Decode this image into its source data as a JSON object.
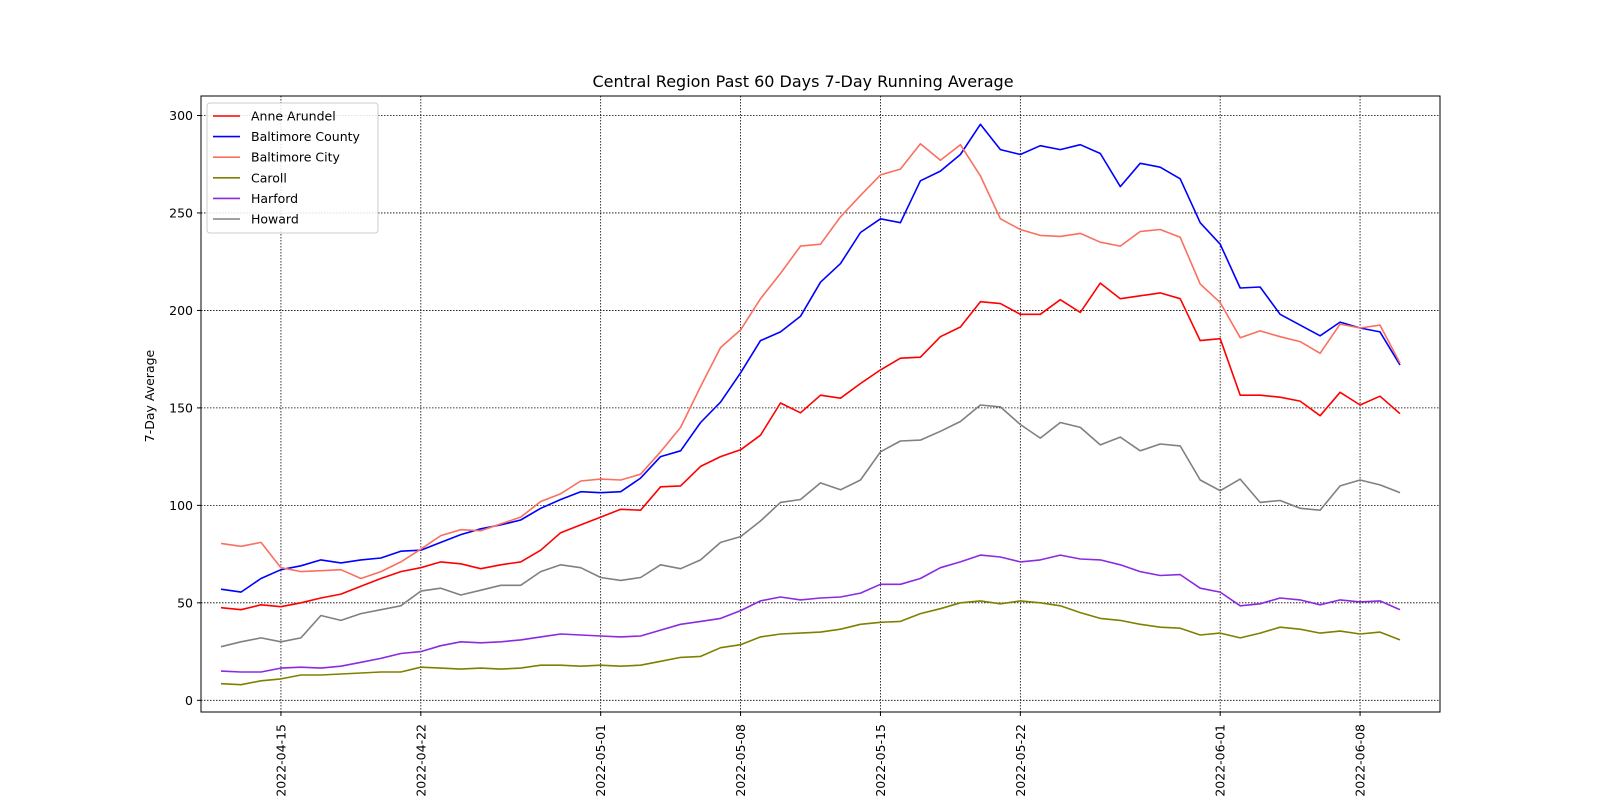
{
  "chart_data": {
    "type": "line",
    "title": "Central Region Past 60 Days 7-Day Running Average",
    "xlabel": "",
    "ylabel": "7-Day Average",
    "x_start": "2022-04-12",
    "x_end": "2022-06-10",
    "xlim": [
      "2022-04-11",
      "2022-06-12"
    ],
    "ylim": [
      -6,
      310
    ],
    "x_ticks": [
      "2022-04-15",
      "2022-04-22",
      "2022-05-01",
      "2022-05-08",
      "2022-05-15",
      "2022-05-22",
      "2022-06-01",
      "2022-06-08"
    ],
    "y_ticks": [
      0,
      50,
      100,
      150,
      200,
      250,
      300
    ],
    "grid": true,
    "legend_position": "top-left",
    "series": [
      {
        "name": "Anne Arundel",
        "color": "#ff0000",
        "values": [
          47.5,
          46.5,
          49,
          48,
          50,
          52.5,
          54.5,
          58.5,
          62.5,
          66,
          68,
          71,
          70,
          67.5,
          69.5,
          71,
          77,
          86,
          90,
          94,
          98,
          97.5,
          109.5,
          110,
          120,
          125,
          128.5,
          136,
          152.5,
          147.5,
          156.5,
          155,
          162.5,
          169.5,
          175.5,
          176,
          186.5,
          191.5,
          204.5,
          203.5,
          198,
          198,
          205.5,
          199,
          214,
          206,
          207.5,
          209,
          206,
          184.5,
          185.5,
          156.5,
          156.5,
          155.5,
          153.5,
          146,
          158,
          151.5,
          156,
          147
        ]
      },
      {
        "name": "Baltimore County",
        "color": "#0000ff",
        "values": [
          57,
          55.5,
          62.5,
          67,
          69,
          72,
          70.5,
          72,
          73,
          76.5,
          77,
          81,
          85,
          88,
          90,
          92.5,
          98.5,
          103,
          107,
          106.5,
          107,
          114,
          125,
          128,
          142.5,
          153,
          168,
          184.5,
          189,
          197,
          214.5,
          224,
          240,
          247,
          245,
          266.5,
          271.5,
          280,
          295.5,
          282.5,
          280,
          284.5,
          282.5,
          285,
          280.5,
          263.5,
          275.5,
          273.5,
          267.5,
          245,
          234,
          211.5,
          212,
          198,
          192.5,
          187,
          194,
          191,
          189,
          172
        ]
      },
      {
        "name": "Baltimore City",
        "color": "#fa7060",
        "values": [
          80.5,
          79,
          81,
          68,
          66,
          66.5,
          67,
          62.5,
          66,
          71,
          77.5,
          84.5,
          87.5,
          87,
          90.5,
          94,
          102,
          106,
          112.5,
          113.5,
          113,
          116,
          127.5,
          140,
          161,
          181,
          190,
          206,
          219,
          233,
          234,
          248,
          259,
          269.5,
          272.5,
          285.5,
          277,
          285,
          269,
          247,
          241.5,
          238.5,
          238,
          239.5,
          235,
          233,
          240.5,
          241.5,
          237.5,
          213.5,
          204,
          186,
          189.5,
          186.5,
          184,
          178,
          193,
          191,
          192.5,
          173
        ]
      },
      {
        "name": "Caroll",
        "color": "#808000",
        "values": [
          8.5,
          8,
          10,
          11,
          13,
          13,
          13.5,
          14,
          14.5,
          14.5,
          17,
          16.5,
          16,
          16.5,
          16,
          16.5,
          18,
          18,
          17.5,
          18,
          17.5,
          18,
          20,
          22,
          22.5,
          27,
          28.5,
          32.5,
          34,
          34.5,
          35,
          36.5,
          39,
          40,
          40.5,
          44.5,
          47,
          50,
          51,
          49.5,
          51,
          50,
          48.5,
          45,
          42,
          41,
          39,
          37.5,
          37,
          33.5,
          34.5,
          32,
          34.5,
          37.5,
          36.5,
          34.5,
          35.5,
          34,
          35,
          31
        ]
      },
      {
        "name": "Harford",
        "color": "#8a2be2",
        "values": [
          15,
          14.5,
          14.5,
          16.5,
          17,
          16.5,
          17.5,
          19.5,
          21.5,
          24,
          25,
          28,
          30,
          29.5,
          30,
          31,
          32.5,
          34,
          33.5,
          33,
          32.5,
          33,
          36,
          39,
          40.5,
          42,
          46,
          51,
          53,
          51.5,
          52.5,
          53,
          55,
          59.5,
          59.5,
          62.5,
          68,
          71,
          74.5,
          73.5,
          71,
          72,
          74.5,
          72.5,
          72,
          69.5,
          66,
          64,
          64.5,
          57.5,
          55.5,
          48.5,
          49.5,
          52.5,
          51.5,
          49,
          51.5,
          50.5,
          51,
          46.5
        ]
      },
      {
        "name": "Howard",
        "color": "#808080",
        "values": [
          27.5,
          30,
          32,
          30,
          32,
          43.5,
          41,
          44.5,
          46.5,
          48.5,
          56,
          57.5,
          54,
          56.5,
          59,
          59,
          66,
          69.5,
          68,
          63,
          61.5,
          63,
          69.5,
          67.5,
          72,
          81,
          84,
          92,
          101.5,
          103,
          111.5,
          108,
          113,
          127.5,
          133,
          133.5,
          138,
          143,
          151.5,
          150.5,
          141.5,
          134.5,
          142.5,
          140,
          131,
          135,
          128,
          131.5,
          130.5,
          113,
          107.5,
          113.5,
          101.5,
          102.5,
          98.5,
          97.5,
          110,
          113,
          110.5,
          106.5
        ]
      }
    ]
  }
}
